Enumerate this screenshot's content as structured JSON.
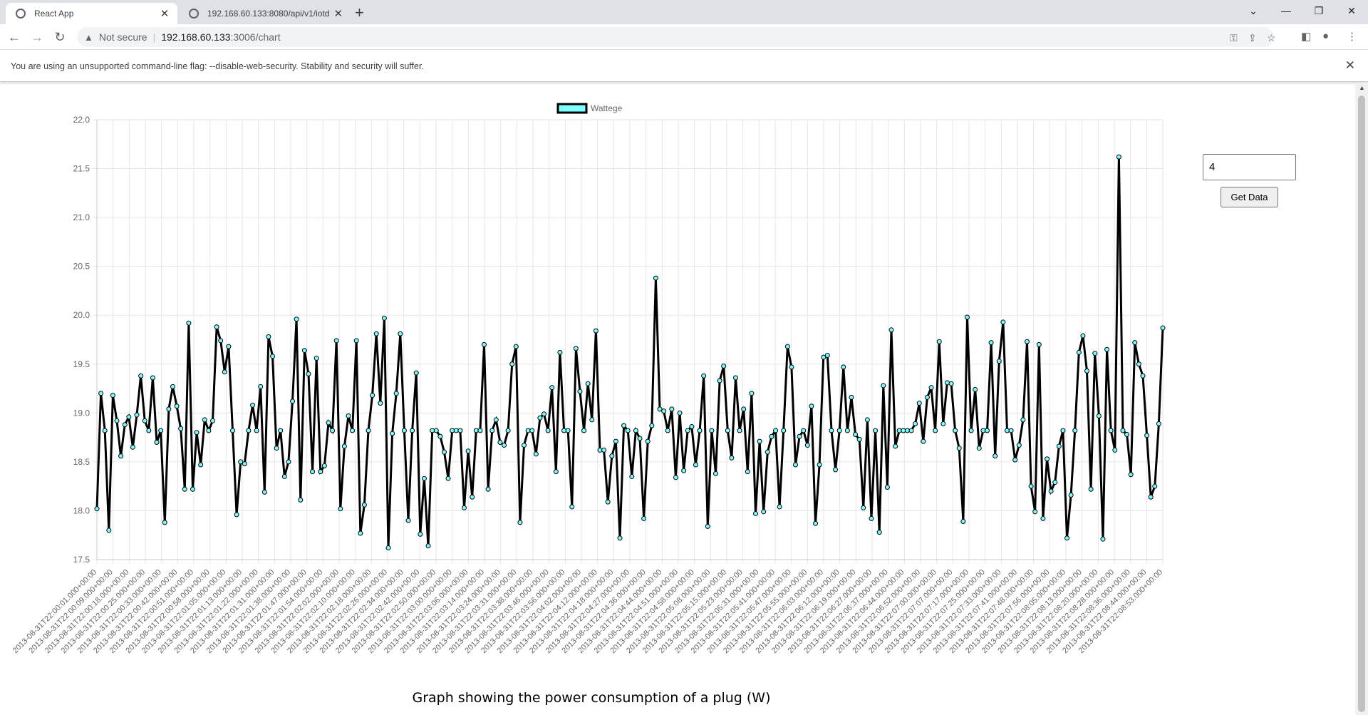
{
  "browser": {
    "tabs": [
      {
        "title": "React App",
        "active": true
      },
      {
        "title": "192.168.60.133:8080/api/v1/iotd",
        "active": false
      }
    ],
    "address": {
      "security": "Not secure",
      "host": "192.168.60.133",
      "path": ":3006/chart"
    },
    "infobar": "You are using an unsupported command-line flag: --disable-web-security. Stability and security will suffer."
  },
  "controls": {
    "input_value": "4",
    "button_label": "Get Data"
  },
  "caption": "Graph showing the power consumption of a plug (W)",
  "colors": {
    "line": "#000000",
    "point_fill": "#7fffff",
    "grid": "#e6e6e6"
  },
  "chart_data": {
    "type": "line",
    "legend": "Wattege",
    "legend_position": "top",
    "grid": true,
    "ylim": [
      17.5,
      22.0
    ],
    "yticks": [
      "22.0",
      "21.5",
      "21.0",
      "20.5",
      "20.0",
      "19.5",
      "19.0",
      "18.5",
      "18.0",
      "17.5"
    ],
    "xlabels": [
      "2013-08-31T22:00:01.000+00:00",
      "2013-08-31T22:00:09.000+00:00",
      "2013-08-31T22:00:18.000+00:00",
      "2013-08-31T22:00:25.000+00:00",
      "2013-08-31T22:00:33.000+00:00",
      "2013-08-31T22:00:42.000+00:00",
      "2013-08-31T22:00:51.000+00:00",
      "2013-08-31T22:00:58.000+00:00",
      "2013-08-31T22:01:05.000+00:00",
      "2013-08-31T22:01:13.000+00:00",
      "2013-08-31T22:01:22.000+00:00",
      "2013-08-31T22:01:31.000+00:00",
      "2013-08-31T22:01:38.000+00:00",
      "2013-08-31T22:01:47.000+00:00",
      "2013-08-31T22:01:54.000+00:00",
      "2013-08-31T22:02:02.000+00:00",
      "2013-08-31T22:02:10.000+00:00",
      "2013-08-31T22:02:18.000+00:00",
      "2013-08-31T22:02:26.000+00:00",
      "2013-08-31T22:02:34.000+00:00",
      "2013-08-31T22:02:42.000+00:00",
      "2013-08-31T22:02:50.000+00:00",
      "2013-08-31T22:03:00.000+00:00",
      "2013-08-31T22:03:06.000+00:00",
      "2013-08-31T22:03:14.000+00:00",
      "2013-08-31T22:03:24.000+00:00",
      "2013-08-31T22:03:31.000+00:00",
      "2013-08-31T22:03:38.000+00:00",
      "2013-08-31T22:03:46.000+00:00",
      "2013-08-31T22:03:56.000+00:00",
      "2013-08-31T22:04:02.000+00:00",
      "2013-08-31T22:04:12.000+00:00",
      "2013-08-31T22:04:18.000+00:00",
      "2013-08-31T22:04:27.000+00:00",
      "2013-08-31T22:04:36.000+00:00",
      "2013-08-31T22:04:44.000+00:00",
      "2013-08-31T22:04:51.000+00:00",
      "2013-08-31T22:04:58.000+00:00",
      "2013-08-31T22:05:08.000+00:00",
      "2013-08-31T22:05:15.000+00:00",
      "2013-08-31T22:05:23.000+00:00",
      "2013-08-31T22:05:31.000+00:00",
      "2013-08-31T22:05:41.000+00:00",
      "2013-08-31T22:05:47.000+00:00",
      "2013-08-31T22:05:55.000+00:00",
      "2013-08-31T22:06:03.000+00:00",
      "2013-08-31T22:06:12.000+00:00",
      "2013-08-31T22:06:19.000+00:00",
      "2013-08-31T22:06:27.000+00:00",
      "2013-08-31T22:06:37.000+00:00",
      "2013-08-31T22:06:44.000+00:00",
      "2013-08-31T22:06:52.000+00:00",
      "2013-08-31T22:07:00.000+00:00",
      "2013-08-31T22:07:07.000+00:00",
      "2013-08-31T22:07:17.000+00:00",
      "2013-08-31T22:07:25.000+00:00",
      "2013-08-31T22:07:33.000+00:00",
      "2013-08-31T22:07:41.000+00:00",
      "2013-08-31T22:07:48.000+00:00",
      "2013-08-31T22:07:56.000+00:00",
      "2013-08-31T22:08:05.000+00:00",
      "2013-08-31T22:08:13.000+00:00",
      "2013-08-31T22:08:20.000+00:00",
      "2013-08-31T22:08:28.000+00:00",
      "2013-08-31T22:08:36.000+00:00",
      "2013-08-31T22:08:44.000+00:00",
      "2013-08-31T22:08:53.000+00:00"
    ],
    "values": [
      18.02,
      19.2,
      18.82,
      17.8,
      19.18,
      18.92,
      18.56,
      18.88,
      18.96,
      18.65,
      18.98,
      19.38,
      18.92,
      18.82,
      19.36,
      18.7,
      18.82,
      17.88,
      19.04,
      19.27,
      19.07,
      18.84,
      18.22,
      19.92,
      18.22,
      18.8,
      18.47,
      18.93,
      18.82,
      18.92,
      19.88,
      19.74,
      19.42,
      19.68,
      18.82,
      17.96,
      18.5,
      18.48,
      18.82,
      19.08,
      18.82,
      19.27,
      18.19,
      19.78,
      19.58,
      18.64,
      18.82,
      18.35,
      18.5,
      19.12,
      19.96,
      18.11,
      19.64,
      19.4,
      18.4,
      19.56,
      18.4,
      18.46,
      18.9,
      18.82,
      19.74,
      18.02,
      18.66,
      18.97,
      18.82,
      19.74,
      17.77,
      18.06,
      18.82,
      19.18,
      19.81,
      19.1,
      19.97,
      17.62,
      18.79,
      19.2,
      19.81,
      18.82,
      17.9,
      18.82,
      19.41,
      17.76,
      18.33,
      17.64,
      18.82,
      18.82,
      18.76,
      18.6,
      18.33,
      18.82,
      18.82,
      18.82,
      18.03,
      18.61,
      18.14,
      18.82,
      18.82,
      19.7,
      18.22,
      18.82,
      18.93,
      18.7,
      18.67,
      18.82,
      19.5,
      19.68,
      17.88,
      18.67,
      18.82,
      18.82,
      18.58,
      18.95,
      18.99,
      18.82,
      19.26,
      18.4,
      19.62,
      18.82,
      18.82,
      18.04,
      19.66,
      19.22,
      18.82,
      19.3,
      18.93,
      19.84,
      18.62,
      18.62,
      18.09,
      18.56,
      18.71,
      17.72,
      18.87,
      18.82,
      18.35,
      18.82,
      18.74,
      17.92,
      18.71,
      18.87,
      20.38,
      19.04,
      19.02,
      18.82,
      19.04,
      18.34,
      19.0,
      18.41,
      18.82,
      18.86,
      18.47,
      18.82,
      19.38,
      17.84,
      18.82,
      18.38,
      19.33,
      19.48,
      18.82,
      18.54,
      19.36,
      18.82,
      19.04,
      18.4,
      19.2,
      17.97,
      18.71,
      17.99,
      18.6,
      18.76,
      18.82,
      18.04,
      18.82,
      19.68,
      19.47,
      18.47,
      18.76,
      18.82,
      18.67,
      19.07,
      17.87,
      18.47,
      19.57,
      19.59,
      18.82,
      18.42,
      18.82,
      19.47,
      18.82,
      19.16,
      18.78,
      18.73,
      18.03,
      18.93,
      17.92,
      18.82,
      17.78,
      19.28,
      18.24,
      19.85,
      18.66,
      18.82,
      18.82,
      18.82,
      18.82,
      18.89,
      19.1,
      18.71,
      19.16,
      19.26,
      18.82,
      19.73,
      18.89,
      19.31,
      19.3,
      18.82,
      18.64,
      17.89,
      19.98,
      18.82,
      19.24,
      18.64,
      18.82,
      18.82,
      19.72,
      18.56,
      19.53,
      19.93,
      18.82,
      18.82,
      18.52,
      18.67,
      18.93,
      19.73,
      18.25,
      17.99,
      19.7,
      17.92,
      18.53,
      18.2,
      18.29,
      18.66,
      18.82,
      17.72,
      18.16,
      18.82,
      19.62,
      19.79,
      19.43,
      18.22,
      19.61,
      18.97,
      17.71,
      19.65,
      18.82,
      18.62,
      21.62,
      18.82,
      18.78,
      18.37,
      19.72,
      19.5,
      19.38,
      18.77,
      18.14,
      18.25,
      18.89,
      19.87
    ]
  }
}
